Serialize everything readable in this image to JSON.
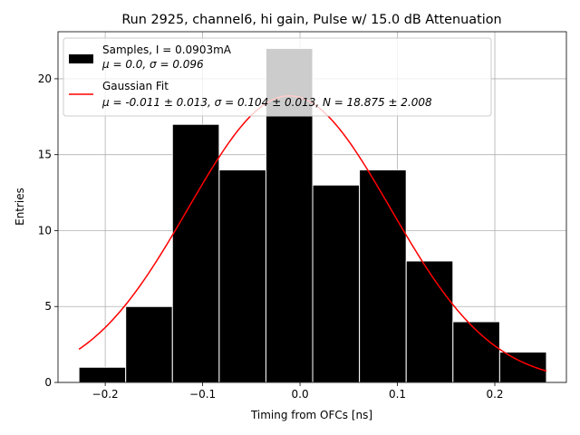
{
  "chart_data": {
    "type": "bar",
    "title": "Run 2925, channel6, hi gain, Pulse w/ 15.0 dB Attenuation",
    "xlabel": "Timing from OFCs [ns]",
    "ylabel": "Entries",
    "xlim": [
      -0.2485,
      0.2735
    ],
    "ylim": [
      0,
      23.1
    ],
    "xticks": [
      -0.2,
      -0.1,
      0.0,
      0.1,
      0.2
    ],
    "xtick_labels": [
      "−0.2",
      "−0.1",
      "0.0",
      "0.1",
      "0.2"
    ],
    "yticks": [
      0,
      5,
      10,
      15,
      20
    ],
    "ytick_labels": [
      "0",
      "5",
      "10",
      "15",
      "20"
    ],
    "grid": true,
    "bins": {
      "edges": [
        -0.227,
        -0.179,
        -0.131,
        -0.083,
        -0.035,
        0.013,
        0.061,
        0.109,
        0.157,
        0.205,
        0.253
      ],
      "counts": [
        1,
        5,
        17,
        14,
        22,
        13,
        14,
        8,
        4,
        2
      ]
    },
    "series": [
      {
        "name": "Samples",
        "kind": "histogram",
        "color": "#000000",
        "edge_color": "#ffffff",
        "legend": {
          "line1": "Samples, I = 0.0903mA",
          "line2_prefix": "μ = 0.0, ",
          "line2_suffix": "σ = 0.096"
        }
      },
      {
        "name": "Gaussian Fit",
        "kind": "line",
        "color": "#ff0000",
        "mu": -0.011,
        "sigma": 0.104,
        "N": 18.875,
        "x_range": [
          -0.227,
          0.253
        ],
        "legend": {
          "line1": "Gaussian Fit",
          "line2": "μ = -0.011 ± 0.013, σ = 0.104 ± 0.013, N = 18.875 ± 2.008"
        }
      }
    ],
    "legend_loc": "upper left"
  }
}
